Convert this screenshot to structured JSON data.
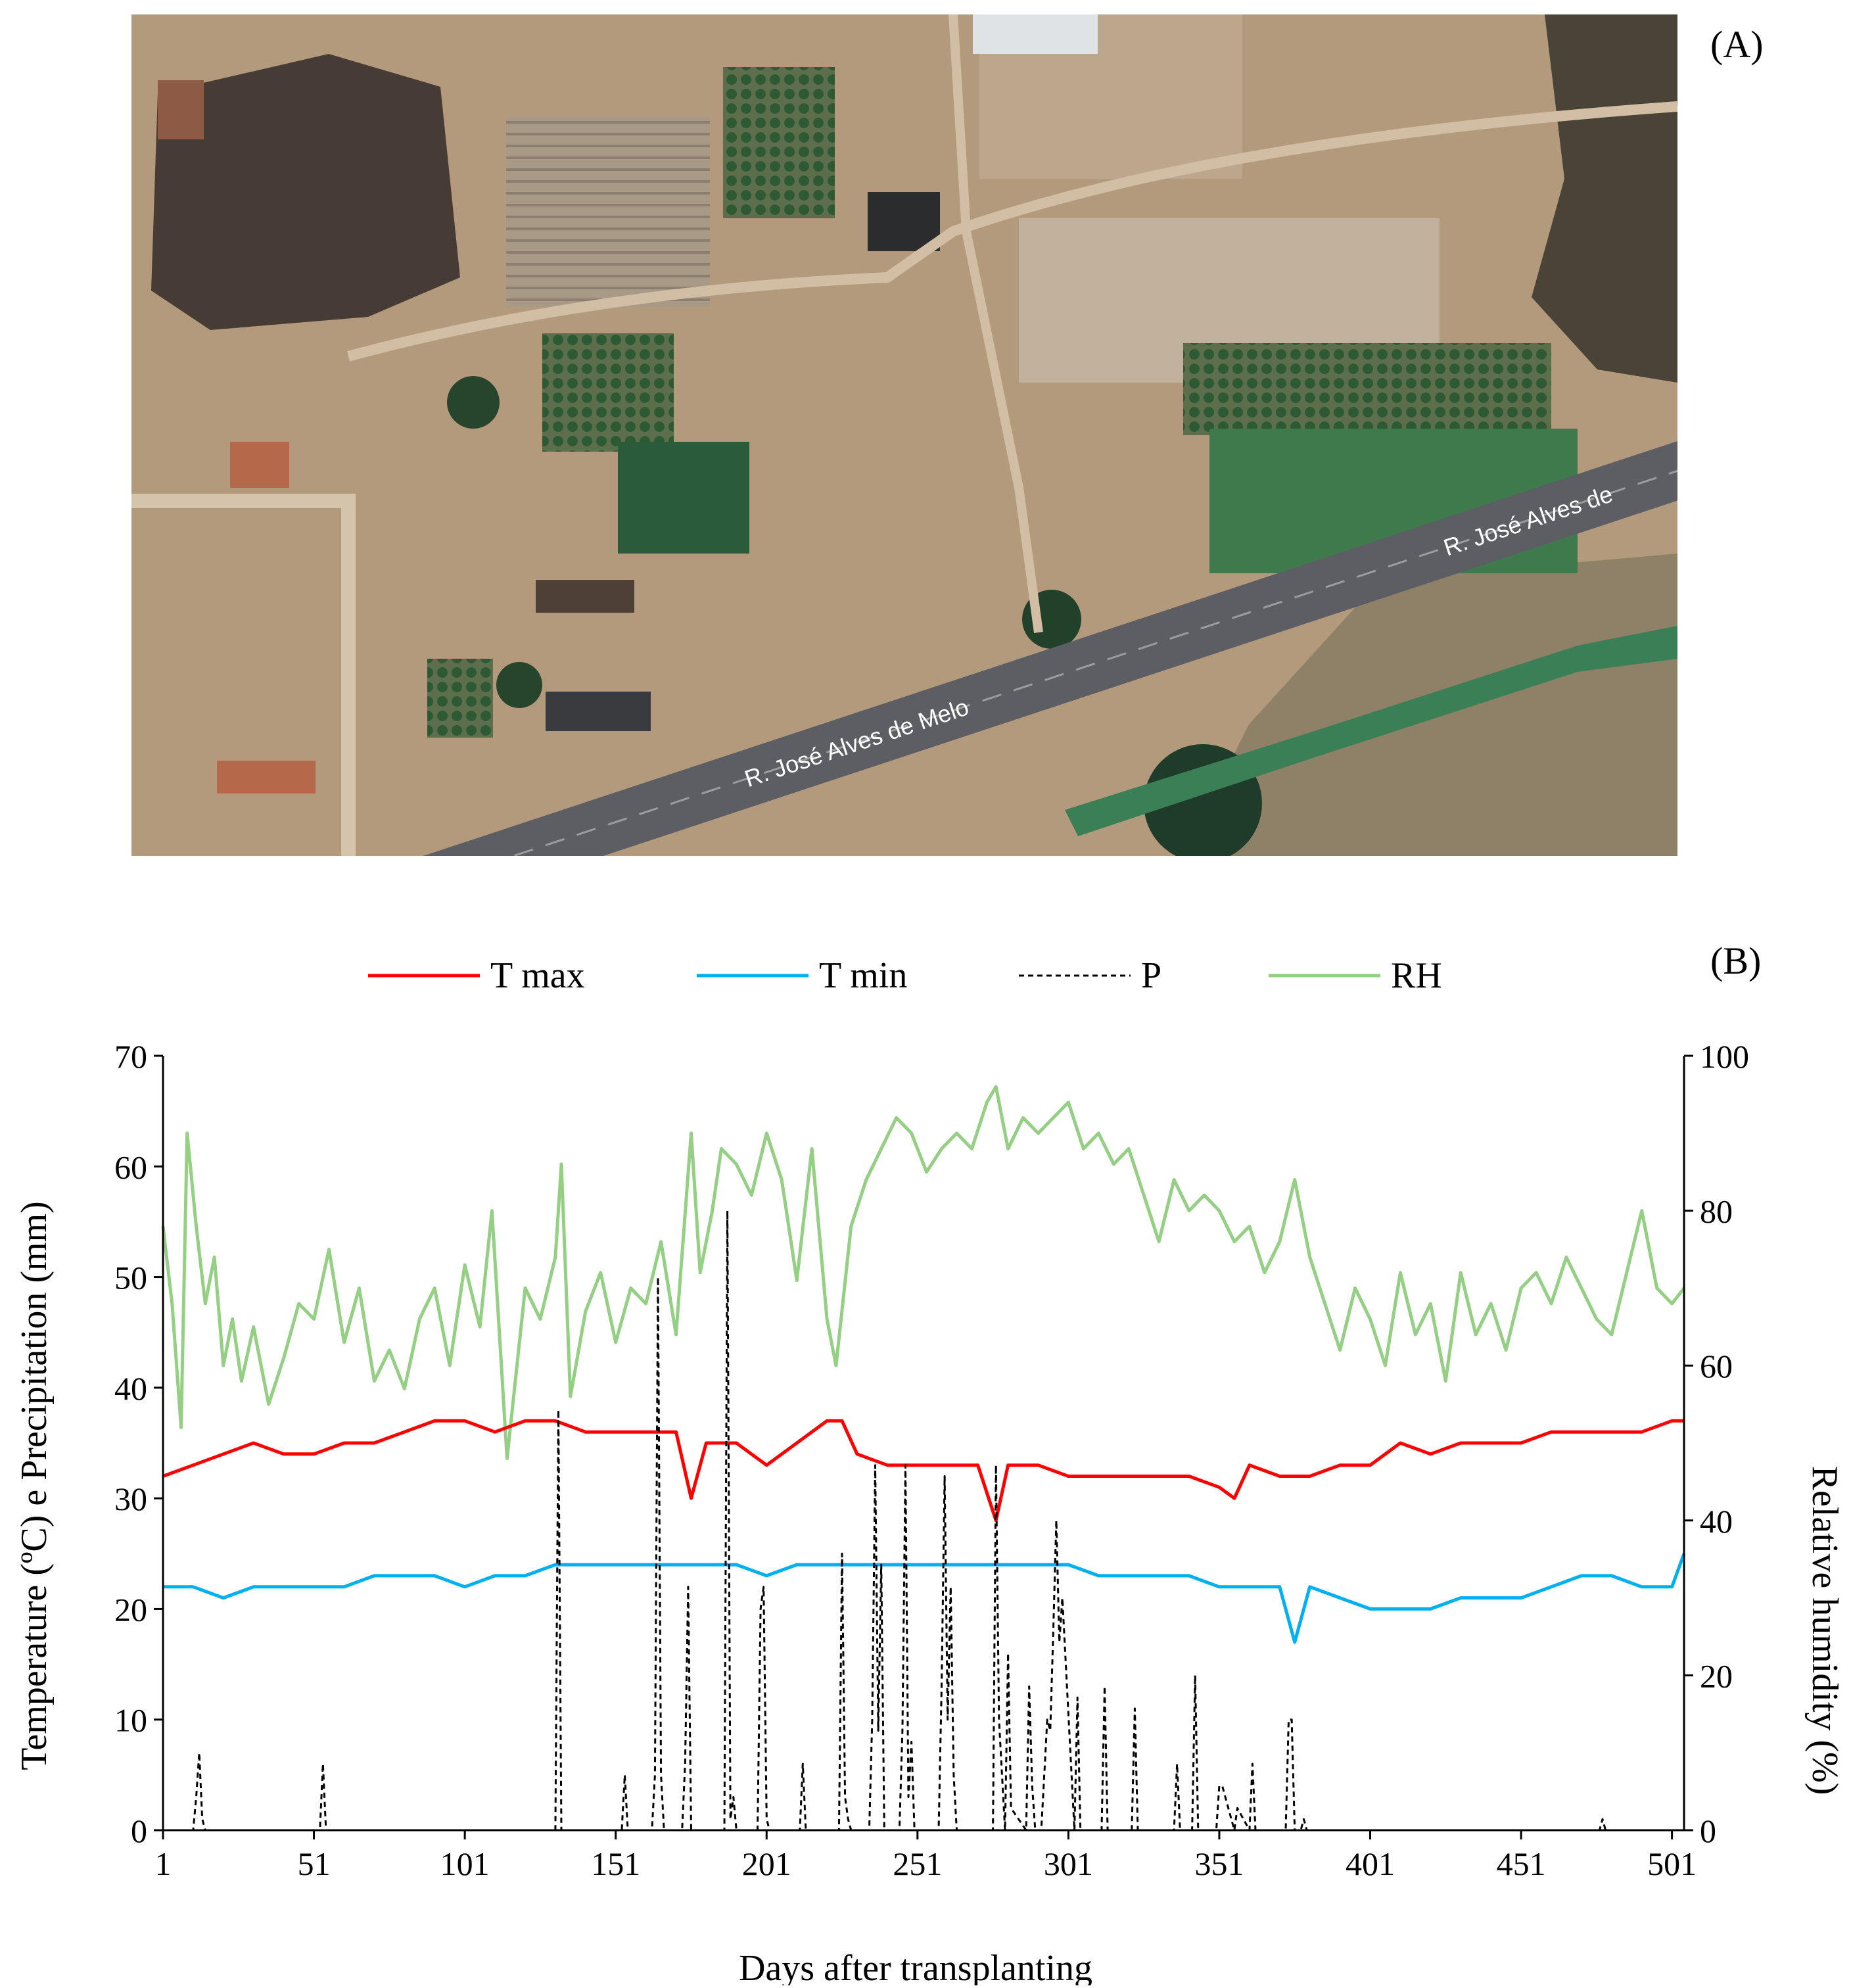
{
  "panel_a": {
    "label": "(A)",
    "road_label_1": "R. José Alves de Melo",
    "road_label_2": "R. José Alves de",
    "colors": {
      "soil": "#b39a7c",
      "vegetation": "#2f4a2c",
      "crop": "#4f7a4a",
      "road": "#5c5e63"
    }
  },
  "panel_b": {
    "label": "(B)"
  },
  "chart_data": {
    "type": "line",
    "xlabel": "Days after transplanting",
    "ylabel": "Temperature (ºC) e Precipitation (mm)",
    "y2label": "Relative humidity (%)",
    "xlim": [
      1,
      505
    ],
    "ylim": [
      0,
      70
    ],
    "y2lim": [
      0,
      100
    ],
    "xticks": [
      1,
      51,
      101,
      151,
      201,
      251,
      301,
      351,
      401,
      451,
      501
    ],
    "yticks": [
      0,
      10,
      20,
      30,
      40,
      50,
      60,
      70
    ],
    "y2ticks": [
      0,
      20,
      40,
      60,
      80,
      100
    ],
    "legend_position": "top",
    "series": [
      {
        "name": "T max",
        "axis": "left",
        "color": "#ff0000",
        "style": "solid",
        "x": [
          1,
          11,
          21,
          31,
          41,
          51,
          61,
          71,
          81,
          91,
          101,
          111,
          121,
          131,
          141,
          151,
          161,
          171,
          176,
          181,
          191,
          201,
          211,
          221,
          226,
          231,
          241,
          251,
          261,
          271,
          277,
          281,
          291,
          301,
          311,
          321,
          331,
          341,
          351,
          356,
          361,
          371,
          381,
          391,
          401,
          411,
          421,
          431,
          441,
          451,
          461,
          471,
          481,
          491,
          501,
          505
        ],
        "y": [
          32,
          33,
          34,
          35,
          34,
          34,
          35,
          35,
          36,
          37,
          37,
          36,
          37,
          37,
          36,
          36,
          36,
          36,
          30,
          35,
          35,
          33,
          35,
          37,
          37,
          34,
          33,
          33,
          33,
          33,
          28,
          33,
          33,
          32,
          32,
          32,
          32,
          32,
          31,
          30,
          33,
          32,
          32,
          33,
          33,
          35,
          34,
          35,
          35,
          35,
          36,
          36,
          36,
          36,
          37,
          37
        ]
      },
      {
        "name": "T min",
        "axis": "left",
        "color": "#00b0f0",
        "style": "solid",
        "x": [
          1,
          11,
          21,
          31,
          41,
          51,
          61,
          71,
          81,
          91,
          101,
          111,
          121,
          131,
          141,
          151,
          161,
          171,
          181,
          191,
          201,
          211,
          221,
          231,
          241,
          251,
          261,
          271,
          281,
          291,
          301,
          311,
          321,
          331,
          341,
          351,
          361,
          371,
          376,
          381,
          391,
          401,
          411,
          421,
          431,
          441,
          451,
          461,
          471,
          481,
          491,
          501,
          505
        ],
        "y": [
          22,
          22,
          21,
          22,
          22,
          22,
          22,
          23,
          23,
          23,
          22,
          23,
          23,
          24,
          24,
          24,
          24,
          24,
          24,
          24,
          23,
          24,
          24,
          24,
          24,
          24,
          24,
          24,
          24,
          24,
          24,
          23,
          23,
          23,
          23,
          22,
          22,
          22,
          17,
          22,
          21,
          20,
          20,
          20,
          21,
          21,
          21,
          22,
          23,
          23,
          22,
          22,
          25
        ]
      },
      {
        "name": "P",
        "axis": "left",
        "color": "#000000",
        "style": "dashed",
        "x": [
          1,
          11,
          12,
          13,
          14,
          15,
          53,
          54,
          55,
          131,
          132,
          133,
          153,
          154,
          155,
          163,
          164,
          165,
          166,
          167,
          173,
          174,
          175,
          176,
          187,
          188,
          189,
          190,
          191,
          198,
          199,
          200,
          201,
          202,
          212,
          213,
          214,
          225,
          226,
          227,
          228,
          229,
          235,
          236,
          237,
          238,
          239,
          240,
          245,
          246,
          247,
          248,
          249,
          250,
          258,
          259,
          260,
          261,
          262,
          263,
          264,
          276,
          277,
          278,
          280,
          281,
          282,
          287,
          288,
          289,
          290,
          292,
          293,
          294,
          295,
          296,
          297,
          298,
          299,
          303,
          304,
          305,
          312,
          313,
          314,
          322,
          323,
          324,
          336,
          337,
          338,
          342,
          343,
          344,
          350,
          351,
          352,
          356,
          357,
          361,
          362,
          363,
          373,
          374,
          375,
          376,
          378,
          379,
          380,
          381,
          477,
          478,
          479,
          505
        ],
        "y": [
          0,
          0,
          3,
          7,
          1,
          0,
          0,
          6,
          0,
          0,
          38,
          0,
          0,
          5,
          0,
          0,
          5,
          50,
          5,
          0,
          0,
          6,
          22,
          0,
          0,
          56,
          1,
          3,
          0,
          0,
          20,
          22,
          1,
          0,
          0,
          6,
          0,
          0,
          25,
          3,
          1,
          0,
          0,
          10,
          33,
          9,
          24,
          0,
          0,
          9,
          33,
          3,
          8,
          0,
          0,
          13,
          32,
          10,
          22,
          5,
          0,
          0,
          33,
          10,
          0,
          16,
          2,
          0,
          13,
          4,
          0,
          0,
          5,
          10,
          9,
          18,
          28,
          17,
          21,
          0,
          12,
          0,
          0,
          13,
          0,
          0,
          11,
          0,
          0,
          6,
          0,
          0,
          14,
          0,
          0,
          4,
          4,
          0,
          2,
          0,
          6,
          0,
          0,
          10,
          10,
          0,
          0,
          1,
          0,
          0,
          0,
          1,
          0,
          0
        ]
      },
      {
        "name": "RH",
        "axis": "right",
        "color": "#94cf84",
        "style": "solid",
        "x": [
          1,
          4,
          7,
          9,
          12,
          15,
          18,
          21,
          24,
          27,
          31,
          36,
          41,
          46,
          51,
          56,
          61,
          66,
          71,
          76,
          81,
          86,
          91,
          96,
          101,
          106,
          110,
          115,
          121,
          126,
          131,
          133,
          136,
          141,
          146,
          151,
          156,
          161,
          166,
          171,
          176,
          179,
          183,
          186,
          191,
          196,
          201,
          206,
          211,
          216,
          221,
          224,
          229,
          234,
          239,
          244,
          249,
          254,
          259,
          264,
          269,
          274,
          277,
          281,
          286,
          291,
          296,
          301,
          306,
          311,
          316,
          321,
          326,
          331,
          336,
          341,
          346,
          351,
          356,
          361,
          366,
          371,
          376,
          381,
          386,
          391,
          396,
          401,
          406,
          411,
          416,
          421,
          426,
          431,
          436,
          441,
          446,
          451,
          456,
          461,
          466,
          471,
          476,
          481,
          486,
          491,
          496,
          501,
          505
        ],
        "y": [
          78,
          68,
          52,
          90,
          78,
          68,
          74,
          60,
          66,
          58,
          65,
          55,
          61,
          68,
          66,
          75,
          63,
          70,
          58,
          62,
          57,
          66,
          70,
          60,
          73,
          65,
          80,
          48,
          70,
          66,
          74,
          86,
          56,
          67,
          72,
          63,
          70,
          68,
          76,
          64,
          90,
          72,
          80,
          88,
          86,
          82,
          90,
          84,
          71,
          88,
          66,
          60,
          78,
          84,
          88,
          92,
          90,
          85,
          88,
          90,
          88,
          94,
          96,
          88,
          92,
          90,
          92,
          94,
          88,
          90,
          86,
          88,
          82,
          76,
          84,
          80,
          82,
          80,
          76,
          78,
          72,
          76,
          84,
          74,
          68,
          62,
          70,
          66,
          60,
          72,
          64,
          68,
          58,
          72,
          64,
          68,
          62,
          70,
          72,
          68,
          74,
          70,
          66,
          64,
          72,
          80,
          70,
          68,
          70
        ]
      }
    ]
  }
}
